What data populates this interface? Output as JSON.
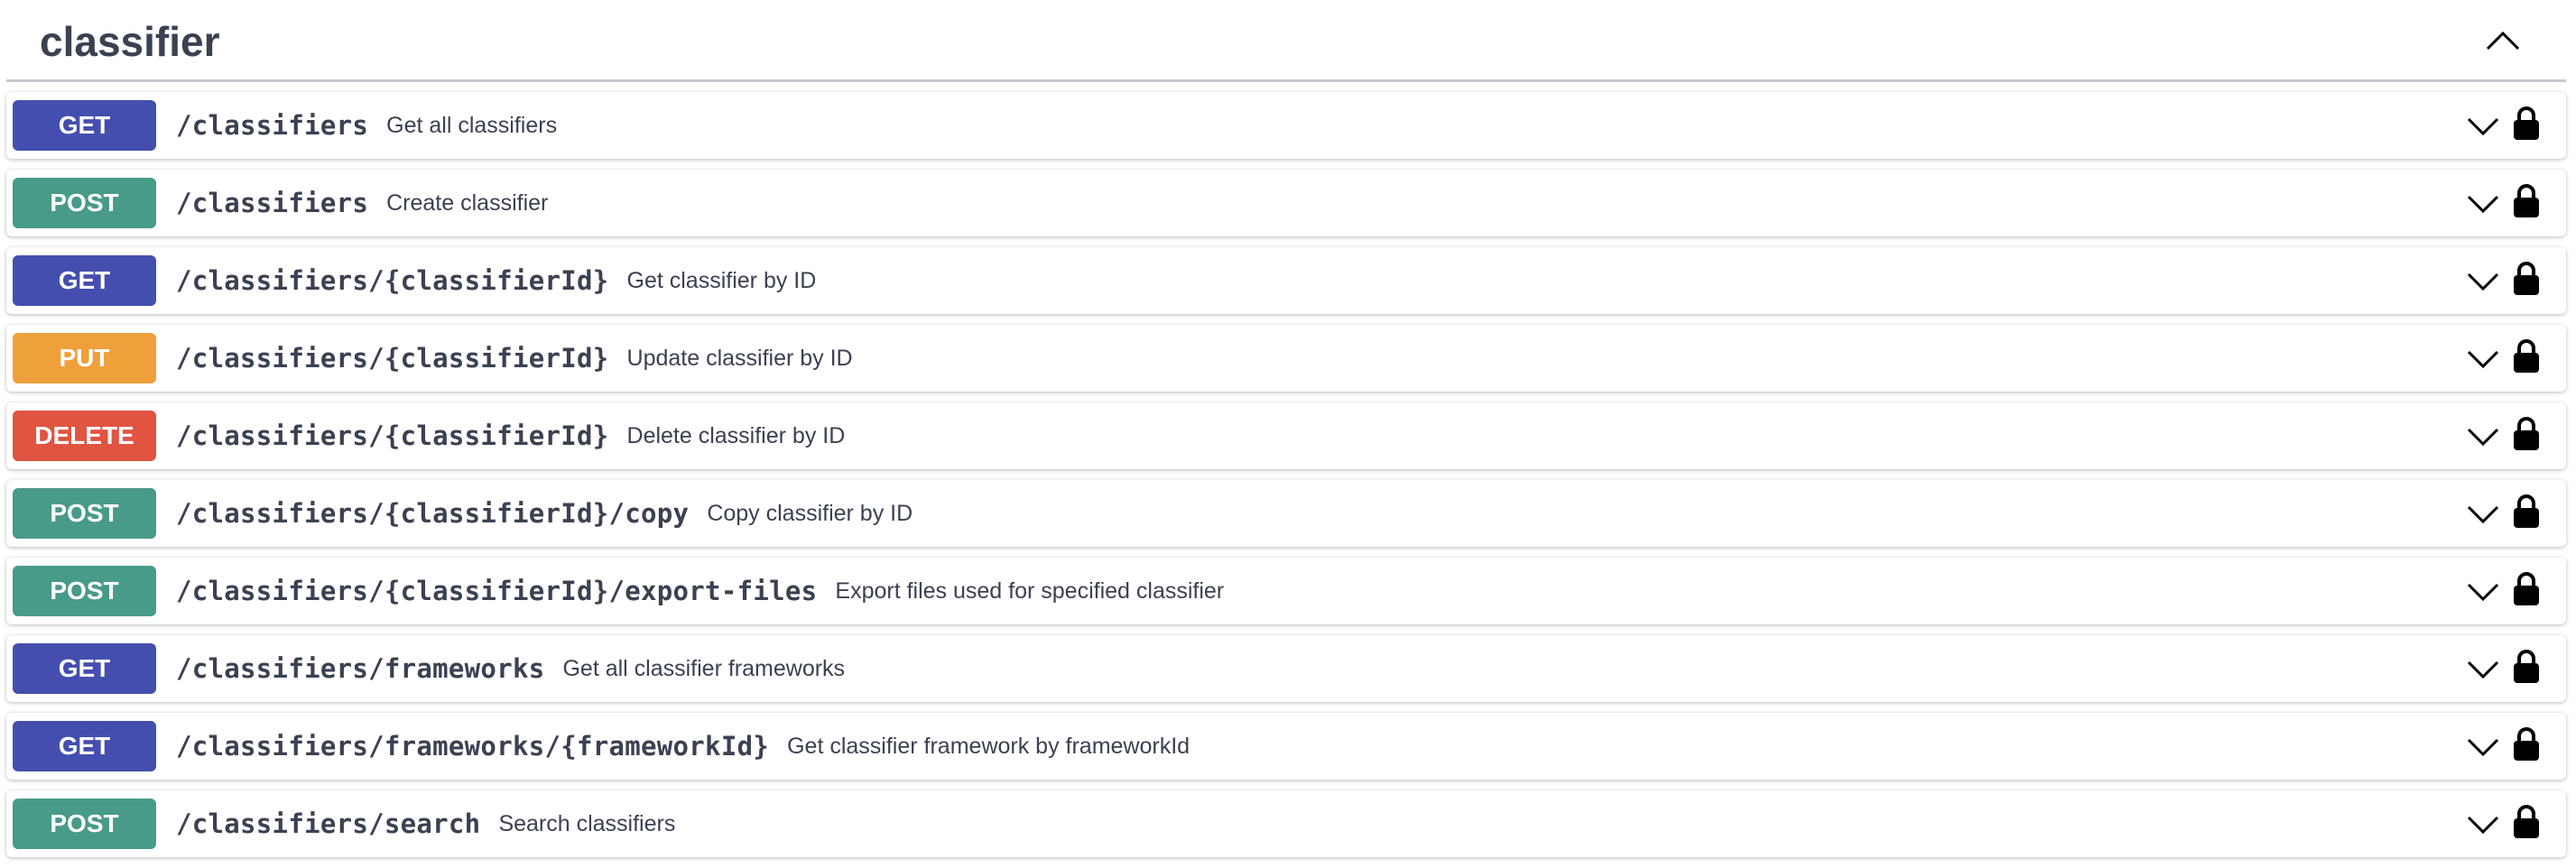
{
  "section": {
    "title": "classifier",
    "expanded": true
  },
  "method_colors": {
    "GET": "#444eae",
    "POST": "#489a89",
    "PUT": "#f0a03a",
    "DELETE": "#e05441"
  },
  "operations": [
    {
      "method": "GET",
      "path": "/classifiers",
      "summary": "Get all classifiers",
      "locked": true
    },
    {
      "method": "POST",
      "path": "/classifiers",
      "summary": "Create classifier",
      "locked": true
    },
    {
      "method": "GET",
      "path": "/classifiers/{classifierId}",
      "summary": "Get classifier by ID",
      "locked": true
    },
    {
      "method": "PUT",
      "path": "/classifiers/{classifierId}",
      "summary": "Update classifier by ID",
      "locked": true
    },
    {
      "method": "DELETE",
      "path": "/classifiers/{classifierId}",
      "summary": "Delete classifier by ID",
      "locked": true
    },
    {
      "method": "POST",
      "path": "/classifiers/{classifierId}/copy",
      "summary": "Copy classifier by ID",
      "locked": true
    },
    {
      "method": "POST",
      "path": "/classifiers/{classifierId}/export-files",
      "summary": "Export files used for specified classifier",
      "locked": true
    },
    {
      "method": "GET",
      "path": "/classifiers/frameworks",
      "summary": "Get all classifier frameworks",
      "locked": true
    },
    {
      "method": "GET",
      "path": "/classifiers/frameworks/{frameworkId}",
      "summary": "Get classifier framework by frameworkId",
      "locked": true
    },
    {
      "method": "POST",
      "path": "/classifiers/search",
      "summary": "Search classifiers",
      "locked": true
    }
  ]
}
